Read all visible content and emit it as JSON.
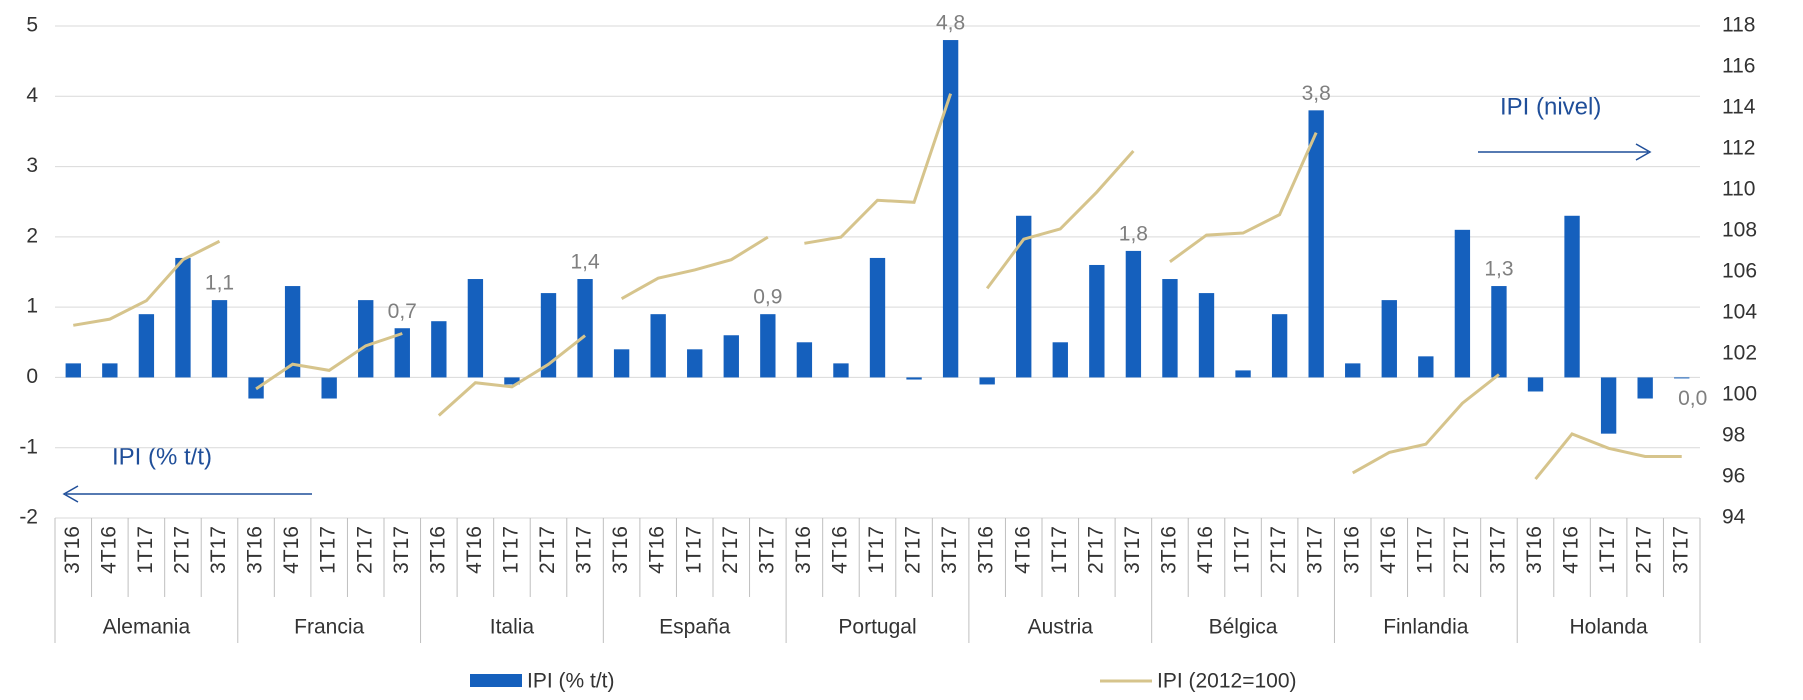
{
  "chart_data": {
    "type": "bar",
    "categories": [
      "3T16",
      "4T16",
      "1T17",
      "2T17",
      "3T17",
      "3T16",
      "4T16",
      "1T17",
      "2T17",
      "3T17",
      "3T16",
      "4T16",
      "1T17",
      "2T17",
      "3T17",
      "3T16",
      "4T16",
      "1T17",
      "2T17",
      "3T17",
      "3T16",
      "4T16",
      "1T17",
      "2T17",
      "3T17",
      "3T16",
      "4T16",
      "1T17",
      "2T17",
      "3T17",
      "3T16",
      "4T16",
      "1T17",
      "2T17",
      "3T17",
      "3T16",
      "4T16",
      "1T17",
      "2T17",
      "3T17",
      "3T16",
      "4T16",
      "1T17",
      "2T17",
      "3T17"
    ],
    "groups": [
      "Alemania",
      "Francia",
      "Italia",
      "España",
      "Portugal",
      "Austria",
      "Bélgica",
      "Finlandia",
      "Holanda"
    ],
    "series": [
      {
        "name": "IPI (% t/t)",
        "type": "bar",
        "color": "#1560bd",
        "values": [
          0.2,
          0.2,
          0.9,
          1.7,
          1.1,
          -0.3,
          1.3,
          -0.3,
          1.1,
          0.7,
          0.8,
          1.4,
          -0.1,
          1.2,
          1.4,
          0.4,
          0.9,
          0.4,
          0.6,
          0.9,
          0.5,
          0.2,
          1.7,
          -0.03,
          4.8,
          -0.1,
          2.3,
          0.5,
          1.6,
          1.8,
          1.4,
          1.2,
          0.1,
          0.9,
          3.8,
          0.2,
          1.1,
          0.3,
          2.1,
          1.3,
          -0.2,
          2.3,
          -0.8,
          -0.3,
          0.0
        ],
        "value_labels": [
          null,
          null,
          null,
          null,
          "1,1",
          null,
          null,
          null,
          null,
          "0,7",
          null,
          null,
          null,
          null,
          "1,4",
          null,
          null,
          null,
          null,
          "0,9",
          null,
          null,
          null,
          null,
          "4,8",
          null,
          null,
          null,
          null,
          "1,8",
          null,
          null,
          null,
          null,
          "3,8",
          null,
          null,
          null,
          null,
          "1,3",
          null,
          null,
          null,
          null,
          "0,0"
        ]
      },
      {
        "name": "IPI (2012=100)",
        "type": "line",
        "color": "#d6c48c",
        "axis": "y2",
        "values": [
          103.4,
          103.7,
          104.6,
          106.6,
          107.5,
          100.3,
          101.5,
          101.2,
          102.4,
          103.0,
          99.0,
          100.6,
          100.4,
          101.5,
          102.9,
          104.7,
          105.7,
          106.1,
          106.6,
          107.7,
          107.4,
          107.7,
          109.5,
          109.4,
          114.7,
          105.2,
          107.6,
          108.1,
          109.9,
          111.9,
          106.5,
          107.8,
          107.9,
          108.8,
          112.8,
          96.2,
          97.2,
          97.6,
          99.6,
          101.0,
          95.9,
          98.1,
          97.4,
          97.0,
          97.0
        ]
      }
    ],
    "ylim": [
      -2,
      5
    ],
    "yticks": [
      -2,
      -1,
      0,
      1,
      2,
      3,
      4,
      5
    ],
    "y2lim": [
      94,
      118
    ],
    "y2ticks": [
      94,
      96,
      98,
      100,
      102,
      104,
      106,
      108,
      110,
      112,
      114,
      116,
      118
    ],
    "grid": true,
    "annotations": [
      {
        "text": "IPI (nivel)"
      },
      {
        "text": "IPI (% t/t)"
      }
    ]
  }
}
